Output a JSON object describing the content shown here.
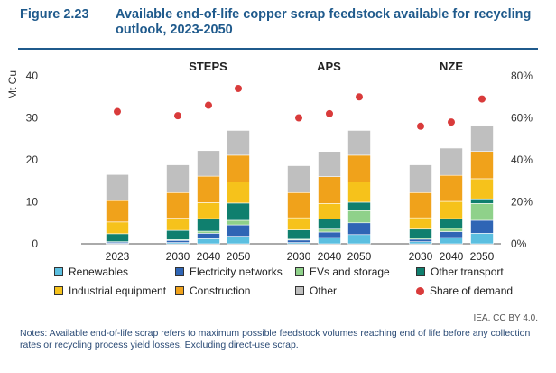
{
  "figure": {
    "label": "Figure 2.23",
    "title": "Available end-of-life copper scrap feedstock available for recycling outlook, 2023-2050"
  },
  "chart_data": {
    "type": "bar",
    "stacked": true,
    "ylabel": "Mt Cu",
    "ylim": [
      0,
      40
    ],
    "yticks": [
      0,
      10,
      20,
      30,
      40
    ],
    "y2lim": [
      0,
      0.8
    ],
    "y2ticks": [
      "0%",
      "20%",
      "40%",
      "60%",
      "80%"
    ],
    "groups": [
      {
        "name": "",
        "categories": [
          "2023"
        ]
      },
      {
        "name": "STEPS",
        "categories": [
          "2030",
          "2040",
          "2050"
        ]
      },
      {
        "name": "APS",
        "categories": [
          "2030",
          "2040",
          "2050"
        ]
      },
      {
        "name": "NZE",
        "categories": [
          "2030",
          "2040",
          "2050"
        ]
      }
    ],
    "categories": [
      "2023",
      "2030",
      "2040",
      "2050",
      "2030",
      "2040",
      "2050",
      "2030",
      "2040",
      "2050"
    ],
    "series": [
      {
        "name": "Renewables",
        "color": "#5bbfe0",
        "values": [
          0.1,
          0.3,
          1.2,
          1.8,
          0.3,
          1.5,
          2.2,
          0.5,
          1.5,
          2.5
        ]
      },
      {
        "name": "Electricity networks",
        "color": "#2f65b5",
        "values": [
          0.3,
          0.5,
          1.3,
          2.7,
          0.6,
          1.3,
          2.8,
          0.6,
          1.4,
          3.1
        ]
      },
      {
        "name": "EVs and storage",
        "color": "#8fd18a",
        "values": [
          0.1,
          0.2,
          0.5,
          1.1,
          0.2,
          0.7,
          2.9,
          0.3,
          0.8,
          4.0
        ]
      },
      {
        "name": "Other transport",
        "color": "#0f7f6e",
        "values": [
          1.9,
          2.2,
          3.0,
          4.1,
          2.2,
          2.4,
          2.0,
          2.1,
          2.3,
          1.1
        ]
      },
      {
        "name": "Industrial equipment",
        "color": "#f6c21b",
        "values": [
          2.8,
          2.9,
          3.8,
          5.0,
          2.9,
          3.7,
          4.8,
          2.7,
          4.1,
          4.8
        ]
      },
      {
        "name": "Construction",
        "color": "#f0a21b",
        "values": [
          5.1,
          6.1,
          6.3,
          6.4,
          6.0,
          6.4,
          6.4,
          6.0,
          6.2,
          6.5
        ]
      },
      {
        "name": "Other",
        "color": "#bfbfbf",
        "values": [
          6.2,
          6.6,
          6.1,
          5.9,
          6.4,
          6.0,
          5.9,
          6.6,
          6.5,
          6.2
        ]
      }
    ],
    "share_of_demand": {
      "name": "Share of demand",
      "color": "#d93b3b",
      "values": [
        0.63,
        0.61,
        0.66,
        0.74,
        0.6,
        0.62,
        0.7,
        0.56,
        0.58,
        0.69
      ]
    },
    "grid": false,
    "legend_position": "bottom"
  },
  "credit": "IEA. CC BY 4.0.",
  "notes": "Notes: Available end-of-life scrap refers to maximum possible feedstock volumes reaching end of life before any collection rates or recycling process yield losses. Excluding direct-use scrap."
}
